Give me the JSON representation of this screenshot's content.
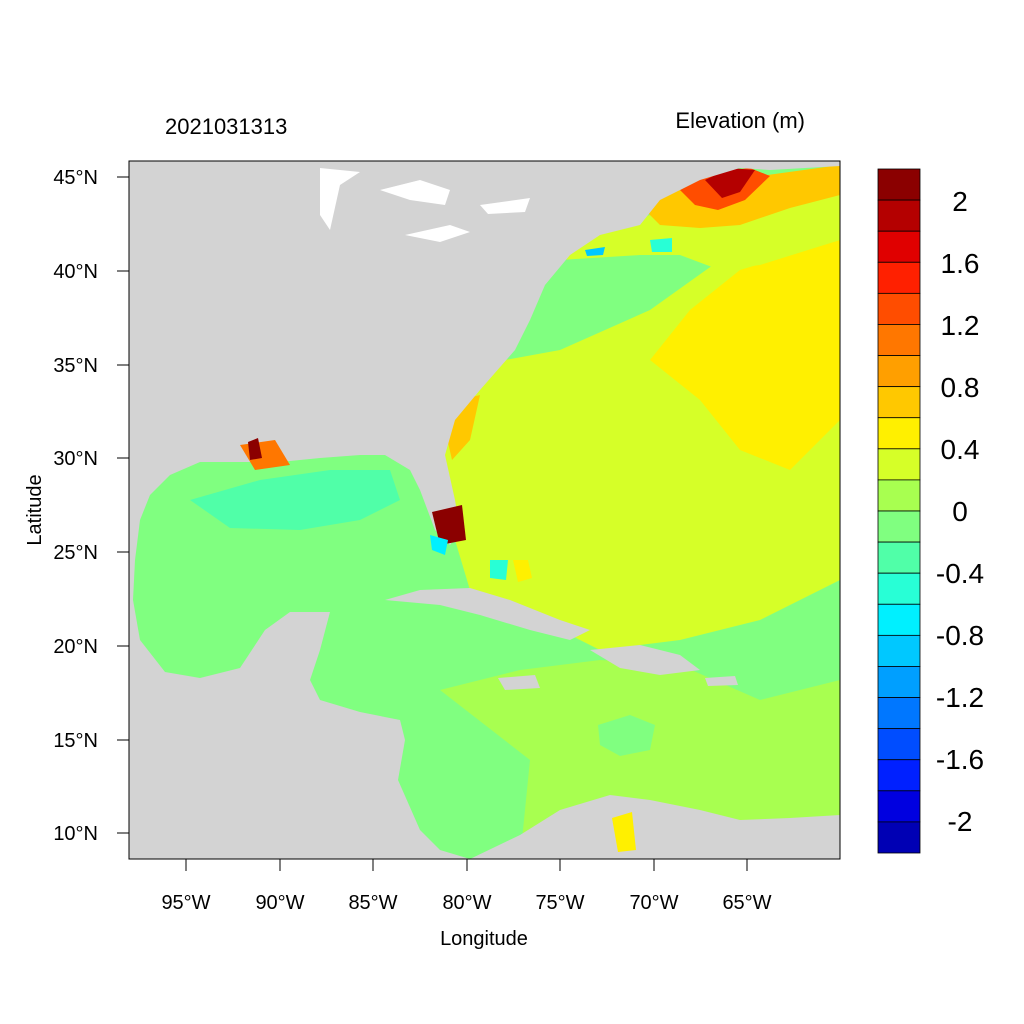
{
  "map": {
    "left_title": "2021031313",
    "right_title": "Elevation (m)",
    "xlabel": "Longitude",
    "ylabel": "Latitude",
    "x_ticks": [
      "95°W",
      "90°W",
      "85°W",
      "80°W",
      "75°W",
      "70°W",
      "65°W"
    ],
    "y_ticks": [
      "45°N",
      "40°N",
      "35°N",
      "30°N",
      "25°N",
      "20°N",
      "15°N",
      "10°N"
    ],
    "lon_range": [
      -98,
      -60
    ],
    "lat_range": [
      8.5,
      46
    ]
  },
  "colorbar": {
    "labels": [
      "2",
      "1.6",
      "1.2",
      "0.8",
      "0.4",
      "0",
      "-0.4",
      "-0.8",
      "-1.2",
      "-1.6",
      "-2"
    ],
    "colors_top_to_bottom": [
      "#8b0000",
      "#b40000",
      "#e00000",
      "#ff2000",
      "#ff4d00",
      "#ff7700",
      "#ff9f00",
      "#ffc800",
      "#fff000",
      "#d6ff28",
      "#a8ff50",
      "#80ff80",
      "#50ffa8",
      "#28ffd6",
      "#00f0ff",
      "#00c8ff",
      "#009fff",
      "#0077ff",
      "#004dff",
      "#0020ff",
      "#0000e0",
      "#0000b4"
    ]
  },
  "colors": {
    "land": "#d3d3d3",
    "water_background": "#80ff80",
    "frame": "#000000"
  }
}
